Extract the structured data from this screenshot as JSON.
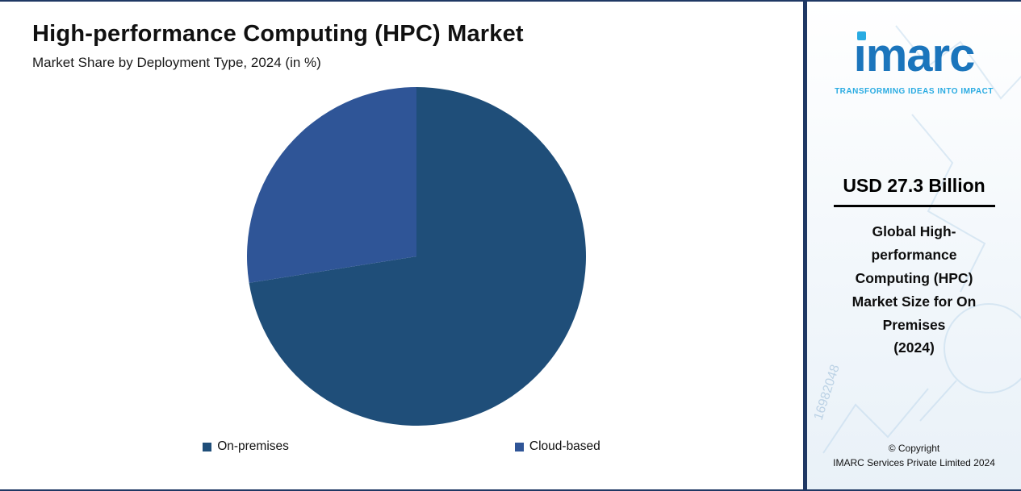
{
  "chart_data": {
    "type": "pie",
    "title": "High-performance Computing (HPC) Market",
    "subtitle": "Market Share by Deployment Type, 2024 (in %)",
    "labels": [
      "On-premises",
      "Cloud-based"
    ],
    "values": [
      72.5,
      27.5
    ],
    "colors": [
      "#1F4E79",
      "#2F5597"
    ],
    "start_angle_deg": 0,
    "direction": "clockwise",
    "legend_position": "bottom",
    "data_labels_shown": false
  },
  "sidebar": {
    "logo_text": "ımarc",
    "tagline": "TRANSFORMING IDEAS INTO IMPACT",
    "headline": "USD 27.3 Billion",
    "description_lines": [
      "Global High-",
      "performance",
      "Computing (HPC)",
      "Market Size for On",
      "Premises",
      "(2024)"
    ],
    "copyright_line1": "© Copyright",
    "copyright_line2": "IMARC Services Private Limited 2024",
    "watermark_number": "16982048",
    "accent_blue": "#1B75BC",
    "accent_cyan": "#29ABE2"
  }
}
